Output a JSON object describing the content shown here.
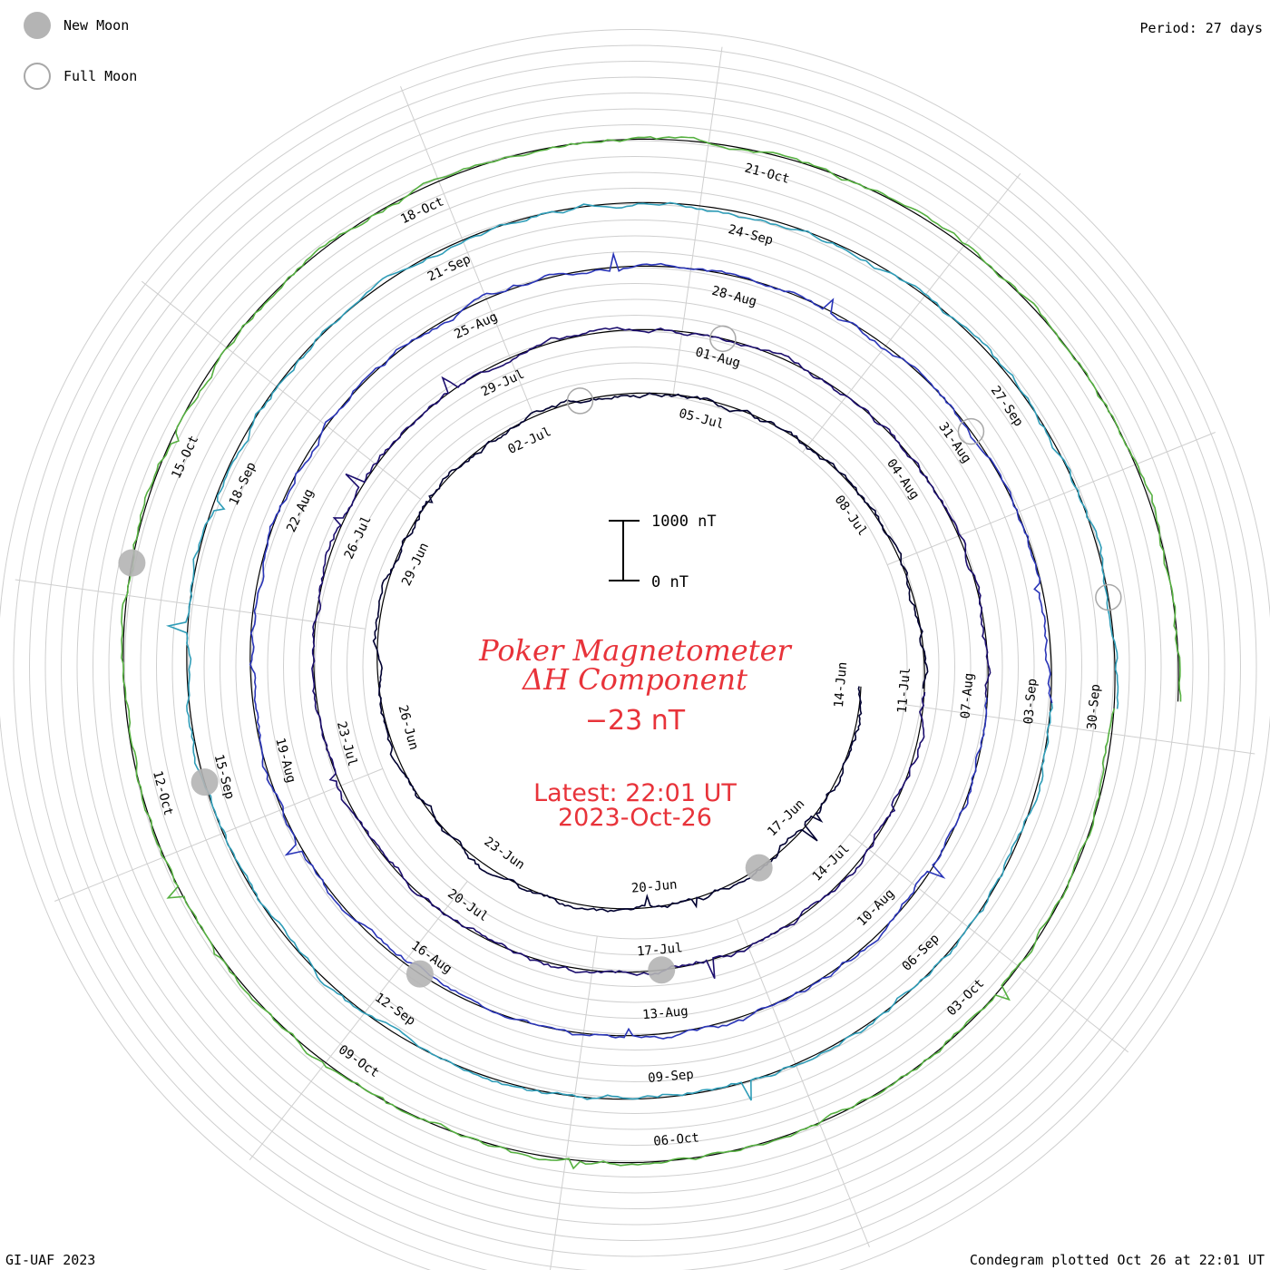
{
  "header": {
    "period_label": "Period: 27 days",
    "footer_left": "GI-UAF 2023",
    "footer_right": "Condegram plotted Oct 26 at 22:01 UT"
  },
  "legend": {
    "items": [
      {
        "label": "New Moon",
        "kind": "new"
      },
      {
        "label": "Full Moon",
        "kind": "full"
      }
    ]
  },
  "center": {
    "title_line1": "Poker Magnetometer",
    "title_line2": "ΔH Component",
    "current_value": "−23 nT",
    "latest_line": "Latest: 22:01 UT",
    "date_line": "2023-Oct-26"
  },
  "scale_bar": {
    "top_label": "1000 nT",
    "bottom_label": "0 nT"
  },
  "chart_data": {
    "type": "line",
    "subtype": "polar-spiral condegram",
    "period_days": 27,
    "units": "nT",
    "grid": true,
    "date_labels": [
      "14-Jun",
      "17-Jun",
      "20-Jun",
      "23-Jun",
      "26-Jun",
      "29-Jun",
      "02-Jul",
      "05-Jul",
      "08-Jul",
      "11-Jul",
      "14-Jul",
      "17-Jul",
      "20-Jul",
      "23-Jul",
      "26-Jul",
      "29-Jul",
      "01-Aug",
      "04-Aug",
      "07-Aug",
      "10-Aug",
      "13-Aug",
      "16-Aug",
      "19-Aug",
      "22-Aug",
      "25-Aug",
      "28-Aug",
      "31-Aug",
      "03-Sep",
      "06-Sep",
      "09-Sep",
      "12-Sep",
      "15-Sep",
      "18-Sep",
      "21-Sep",
      "24-Sep",
      "27-Sep",
      "30-Sep",
      "03-Oct",
      "06-Oct",
      "09-Oct",
      "12-Oct",
      "15-Oct",
      "18-Oct",
      "21-Oct"
    ],
    "rotation_colors": [
      "#000030",
      "#1c0e6e",
      "#2a35b8",
      "#2f9db8",
      "#55b040",
      "#b4b020",
      "#c48018",
      "#b81c10"
    ],
    "new_moons": [
      "2023-06-18",
      "2023-07-17",
      "2023-08-16",
      "2023-09-15",
      "2023-10-14"
    ],
    "full_moons": [
      "2023-07-03",
      "2023-08-01",
      "2023-08-31",
      "2023-09-29"
    ]
  }
}
